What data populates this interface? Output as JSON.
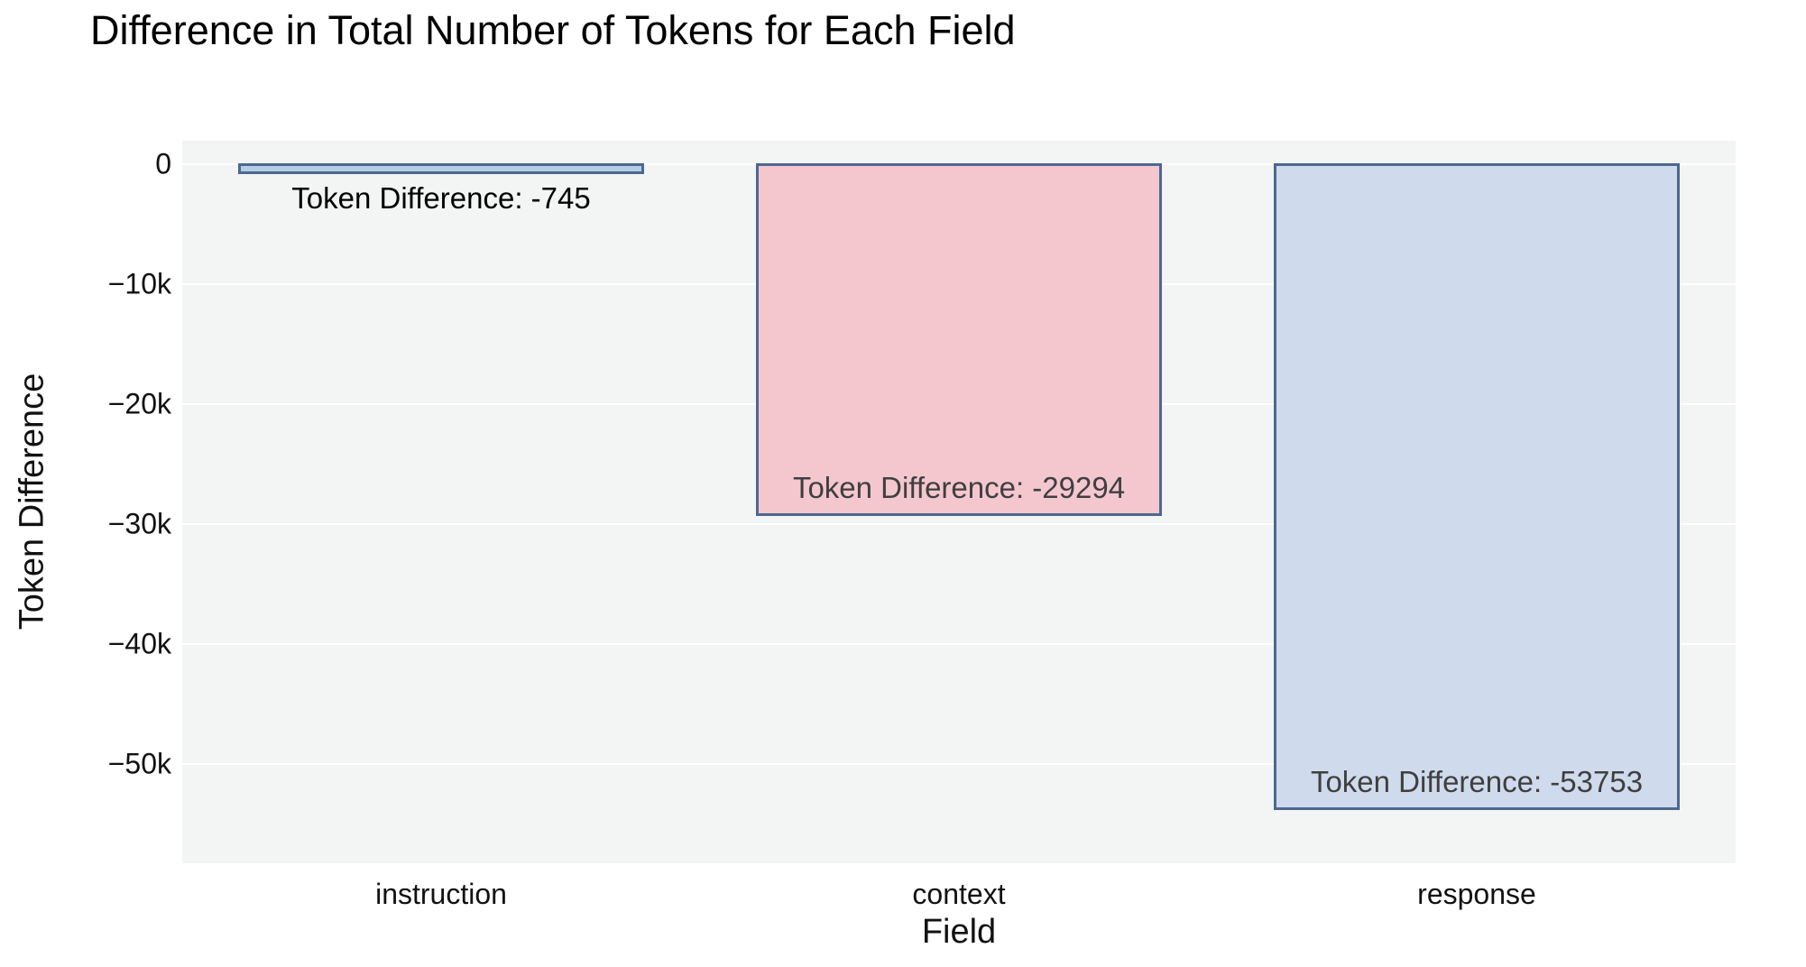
{
  "title": "Difference in Total Number of Tokens for Each Field",
  "chart_data": {
    "type": "bar",
    "title": "Difference in Total Number of Tokens for Each Field",
    "xlabel": "Field",
    "ylabel": "Token Difference",
    "categories": [
      "instruction",
      "context",
      "response"
    ],
    "values": [
      -745,
      -29294,
      -53753
    ],
    "bar_labels": [
      "Token Difference: -745",
      "Token Difference: -29294",
      "Token Difference: -53753"
    ],
    "bar_label_positions": [
      "outside",
      "inside",
      "inside"
    ],
    "bar_colors": [
      "#b5cde5",
      "#f4c7cf",
      "#cfdbec"
    ],
    "bar_border_color": "#4d6890",
    "outside_label_color": "#000000",
    "inside_label_color": "#3f3f3f",
    "yticks": [
      0,
      -10000,
      -20000,
      -30000,
      -40000,
      -50000
    ],
    "ytick_labels": [
      "0",
      "−10k",
      "−20k",
      "−30k",
      "−40k",
      "−50k"
    ],
    "ylim": [
      -58300,
      1950
    ],
    "grid": true,
    "grid_color": "#ffffff",
    "plot_bg": "#f3f4f4",
    "legend_position": "none"
  }
}
